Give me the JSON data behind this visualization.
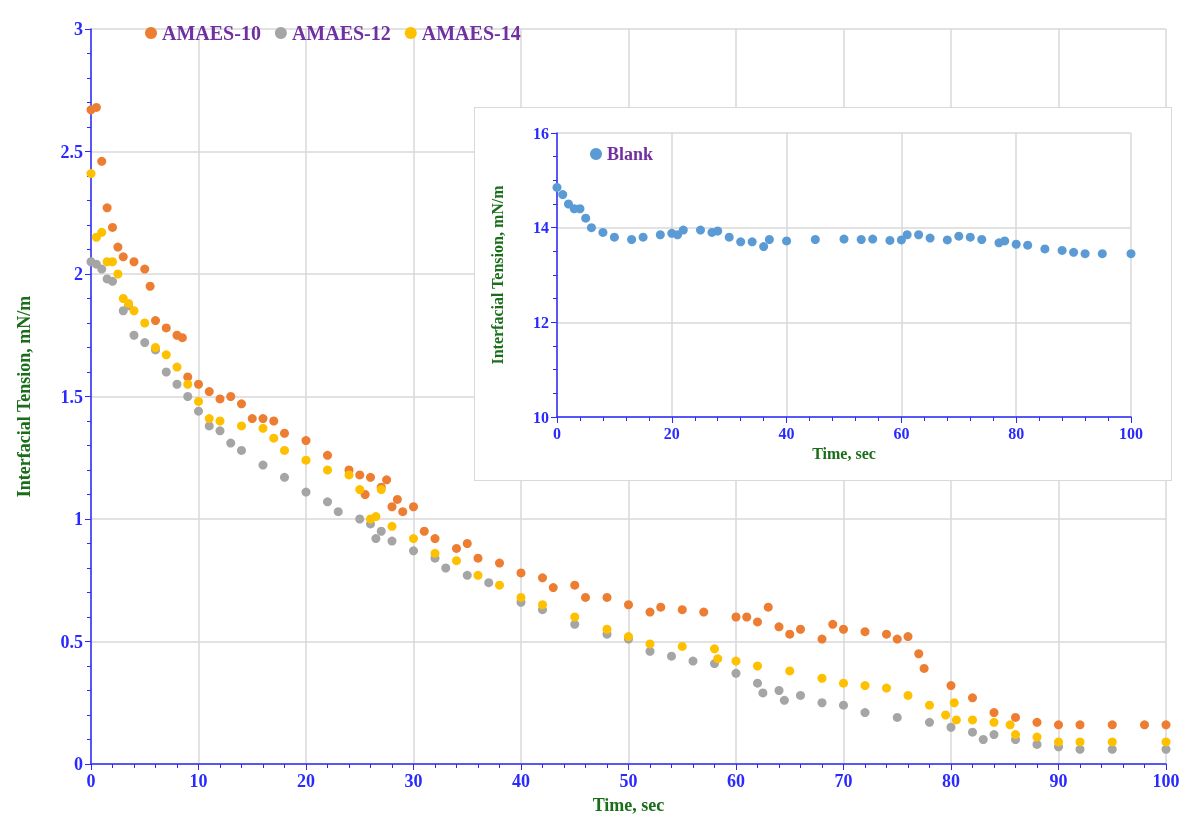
{
  "chart_data": [
    {
      "type": "scatter",
      "xlabel": "Time, sec",
      "ylabel": "Interfacial Tension, mN/m",
      "xlim": [
        0,
        100
      ],
      "xticks": [
        0,
        10,
        20,
        30,
        40,
        50,
        60,
        70,
        80,
        90,
        100
      ],
      "ylim": [
        0,
        3
      ],
      "yticks": [
        0,
        0.5,
        1,
        1.5,
        2,
        2.5,
        3
      ],
      "grid": true,
      "legend": "top left",
      "marker": "circle",
      "series": [
        {
          "name": "AMAES-10",
          "color": "#ed7d31",
          "x": [
            0,
            0.5,
            1,
            1.5,
            2,
            2.5,
            3,
            4,
            5,
            5.5,
            6,
            7,
            8,
            8.5,
            9,
            10,
            11,
            12,
            13,
            14,
            15,
            16,
            17,
            18,
            20,
            22,
            24,
            25,
            25.5,
            26,
            27,
            27.5,
            28,
            28.5,
            29,
            30,
            31,
            32,
            34,
            35,
            36,
            38,
            40,
            42,
            43,
            45,
            46,
            48,
            50,
            52,
            53,
            55,
            57,
            60,
            61,
            62,
            63,
            64,
            65,
            66,
            68,
            69,
            70,
            72,
            74,
            75,
            76,
            77,
            77.5,
            80,
            82,
            84,
            86,
            88,
            90,
            92,
            95,
            98,
            100
          ],
          "values": [
            2.67,
            2.68,
            2.46,
            2.27,
            2.19,
            2.11,
            2.07,
            2.05,
            2.02,
            1.95,
            1.81,
            1.78,
            1.75,
            1.74,
            1.58,
            1.55,
            1.52,
            1.49,
            1.5,
            1.47,
            1.41,
            1.41,
            1.4,
            1.35,
            1.32,
            1.26,
            1.2,
            1.18,
            1.1,
            1.17,
            1.13,
            1.16,
            1.05,
            1.08,
            1.03,
            1.05,
            0.95,
            0.92,
            0.88,
            0.9,
            0.84,
            0.82,
            0.78,
            0.76,
            0.72,
            0.73,
            0.68,
            0.68,
            0.65,
            0.62,
            0.64,
            0.63,
            0.62,
            0.6,
            0.6,
            0.58,
            0.64,
            0.56,
            0.53,
            0.55,
            0.51,
            0.57,
            0.55,
            0.54,
            0.53,
            0.51,
            0.52,
            0.45,
            0.39,
            0.32,
            0.27,
            0.21,
            0.19,
            0.17,
            0.16,
            0.16,
            0.16,
            0.16,
            0.16
          ]
        },
        {
          "name": "AMAES-12",
          "color": "#a5a5a5",
          "x": [
            0,
            0.5,
            1,
            1.5,
            2,
            3,
            3.5,
            4,
            5,
            6,
            7,
            8,
            9,
            10,
            11,
            12,
            13,
            14,
            16,
            18,
            20,
            22,
            23,
            25,
            26,
            26.5,
            27,
            28,
            30,
            32,
            33,
            35,
            37,
            40,
            42,
            45,
            48,
            50,
            52,
            54,
            56,
            58,
            60,
            62,
            62.5,
            64,
            64.5,
            66,
            68,
            70,
            72,
            75,
            78,
            80,
            82,
            83,
            84,
            86,
            88,
            90,
            92,
            95,
            100
          ],
          "values": [
            2.05,
            2.04,
            2.02,
            1.98,
            1.97,
            1.85,
            1.87,
            1.75,
            1.72,
            1.69,
            1.6,
            1.55,
            1.5,
            1.44,
            1.38,
            1.36,
            1.31,
            1.28,
            1.22,
            1.17,
            1.11,
            1.07,
            1.03,
            1,
            0.98,
            0.92,
            0.95,
            0.91,
            0.87,
            0.84,
            0.8,
            0.77,
            0.74,
            0.66,
            0.63,
            0.57,
            0.53,
            0.51,
            0.46,
            0.44,
            0.42,
            0.41,
            0.37,
            0.33,
            0.29,
            0.3,
            0.26,
            0.28,
            0.25,
            0.24,
            0.21,
            0.19,
            0.17,
            0.15,
            0.13,
            0.1,
            0.12,
            0.1,
            0.08,
            0.07,
            0.06,
            0.06,
            0.06
          ]
        },
        {
          "name": "AMAES-14",
          "color": "#ffc000",
          "x": [
            0,
            0.5,
            1,
            1.5,
            2,
            2.5,
            3,
            3.5,
            4,
            5,
            6,
            7,
            8,
            9,
            10,
            11,
            12,
            14,
            16,
            17,
            18,
            20,
            22,
            24,
            25,
            26,
            26.5,
            27,
            28,
            30,
            32,
            34,
            36,
            38,
            40,
            42,
            45,
            48,
            50,
            52,
            55,
            58,
            58.3,
            60,
            62,
            65,
            68,
            70,
            72,
            74,
            76,
            78,
            79.5,
            80.3,
            80.5,
            82,
            84,
            85.5,
            86,
            88,
            90,
            92,
            95,
            100
          ],
          "values": [
            2.41,
            2.15,
            2.17,
            2.05,
            2.05,
            2,
            1.9,
            1.88,
            1.85,
            1.8,
            1.7,
            1.67,
            1.62,
            1.55,
            1.48,
            1.41,
            1.4,
            1.38,
            1.37,
            1.33,
            1.28,
            1.24,
            1.2,
            1.18,
            1.12,
            1,
            1.01,
            1.12,
            0.97,
            0.92,
            0.86,
            0.83,
            0.77,
            0.73,
            0.68,
            0.65,
            0.6,
            0.55,
            0.52,
            0.49,
            0.48,
            0.47,
            0.43,
            0.42,
            0.4,
            0.38,
            0.35,
            0.33,
            0.32,
            0.31,
            0.28,
            0.24,
            0.2,
            0.25,
            0.18,
            0.18,
            0.17,
            0.16,
            0.12,
            0.11,
            0.09,
            0.09,
            0.09,
            0.09
          ]
        }
      ]
    },
    {
      "type": "scatter",
      "xlabel": "Time, sec",
      "ylabel": "Interfacial Tension, mN/m",
      "xlim": [
        0,
        100
      ],
      "xticks": [
        0,
        20,
        40,
        60,
        80,
        100
      ],
      "ylim": [
        10,
        16
      ],
      "yticks": [
        10,
        12,
        14,
        16
      ],
      "grid": true,
      "legend": "top left",
      "marker": "circle",
      "series": [
        {
          "name": "Blank",
          "color": "#5b9bd5",
          "x": [
            0,
            1,
            2,
            3,
            4,
            5,
            6,
            8,
            10,
            13,
            15,
            18,
            20,
            21,
            22,
            25,
            27,
            28,
            30,
            32,
            34,
            36,
            37,
            40,
            45,
            50,
            53,
            55,
            58,
            60,
            61,
            63,
            65,
            68,
            70,
            72,
            74,
            77,
            78,
            80,
            82,
            85,
            88,
            90,
            92,
            95,
            100
          ],
          "values": [
            14.85,
            14.7,
            14.5,
            14.4,
            14.4,
            14.2,
            14,
            13.9,
            13.8,
            13.75,
            13.8,
            13.85,
            13.88,
            13.85,
            13.95,
            13.95,
            13.9,
            13.93,
            13.8,
            13.7,
            13.7,
            13.6,
            13.75,
            13.72,
            13.75,
            13.76,
            13.75,
            13.76,
            13.73,
            13.74,
            13.85,
            13.85,
            13.78,
            13.74,
            13.82,
            13.8,
            13.75,
            13.68,
            13.72,
            13.65,
            13.63,
            13.55,
            13.52,
            13.48,
            13.45,
            13.45,
            13.45
          ]
        }
      ]
    }
  ]
}
